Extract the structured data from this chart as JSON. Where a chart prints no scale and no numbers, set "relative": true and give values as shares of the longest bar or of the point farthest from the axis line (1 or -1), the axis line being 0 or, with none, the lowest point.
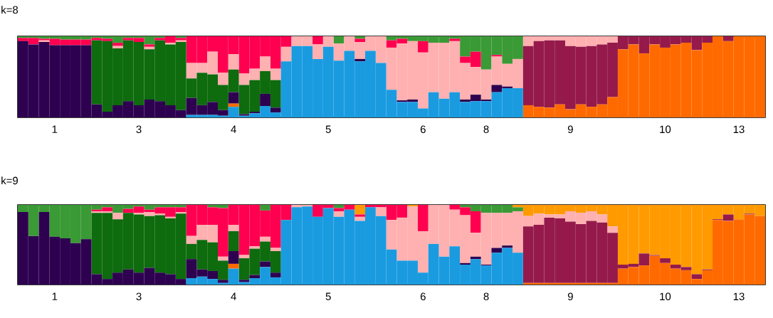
{
  "chart_data": [
    {
      "type": "bar",
      "title": "k=8",
      "stacked": true,
      "relative": true,
      "categories": [
        null,
        null,
        null,
        "1",
        null,
        null,
        null,
        null,
        null,
        null,
        null,
        "3",
        null,
        null,
        null,
        null,
        null,
        null,
        null,
        null,
        "4",
        null,
        null,
        null,
        null,
        null,
        null,
        null,
        null,
        "5",
        null,
        null,
        null,
        null,
        null,
        null,
        null,
        null,
        "6",
        null,
        null,
        null,
        null,
        null,
        "8",
        null,
        null,
        null,
        null,
        null,
        null,
        null,
        "9",
        null,
        null,
        null,
        null,
        null,
        null,
        null,
        null,
        "10",
        null,
        null,
        null,
        null,
        null,
        null,
        "13",
        null,
        null
      ],
      "series": [
        {
          "color": "#1a9be0",
          "values": [
            0,
            0,
            0,
            0,
            0,
            0,
            0,
            0,
            0,
            0,
            0,
            0,
            0,
            0,
            0,
            0,
            0.03,
            0.03,
            0.03,
            0.02,
            0.13,
            0.02,
            0.05,
            0.14,
            0.06,
            0.69,
            0.88,
            0.88,
            0.72,
            0.87,
            0.7,
            0.82,
            0.69,
            0.82,
            0.67,
            0.34,
            0.19,
            0.19,
            0.11,
            0.31,
            0.23,
            0.31,
            0.19,
            0.2,
            0.2,
            0.31,
            0.36,
            0.36,
            0,
            0,
            0,
            0,
            0,
            0,
            0,
            0,
            0,
            0,
            0,
            0,
            0,
            0,
            0,
            0,
            0,
            0,
            0,
            0,
            0,
            0,
            0
          ]
        },
        {
          "color": "#ff6a00",
          "values": [
            0,
            0,
            0,
            0,
            0,
            0,
            0,
            0,
            0,
            0,
            0,
            0,
            0,
            0,
            0,
            0,
            0,
            0,
            0,
            0,
            0.04,
            0,
            0,
            0,
            0,
            0,
            0,
            0,
            0,
            0,
            0,
            0,
            0,
            0,
            0,
            0,
            0,
            0,
            0,
            0,
            0,
            0,
            0,
            0,
            0,
            0,
            0,
            0,
            0.15,
            0.13,
            0.12,
            0.16,
            0.1,
            0.16,
            0.13,
            0.16,
            0.25,
            0.84,
            0.9,
            0.79,
            0.9,
            0.86,
            0.9,
            0.92,
            0.83,
            0.92,
            1,
            0.94,
            1,
            1,
            1
          ]
        },
        {
          "color": "#2d0050",
          "values": [
            0.94,
            0.9,
            0.93,
            0.89,
            0.89,
            0.89,
            0.89,
            0.16,
            0.07,
            0.15,
            0.2,
            0.15,
            0.22,
            0.2,
            0.15,
            0.09,
            0.21,
            0.12,
            0.16,
            0.07,
            0.14,
            0.02,
            0.02,
            0.15,
            0.06,
            0,
            0,
            0,
            0,
            0,
            0,
            0,
            0.03,
            0,
            0,
            0,
            0.02,
            0.03,
            0,
            0,
            0,
            0,
            0.03,
            0.08,
            0.02,
            0.09,
            0.02,
            0,
            0,
            0,
            0,
            0,
            0,
            0,
            0,
            0,
            0,
            0,
            0,
            0,
            0,
            0,
            0,
            0,
            0,
            0,
            0,
            0,
            0,
            0,
            0
          ]
        },
        {
          "color": "#0e6b0e",
          "values": [
            0,
            0,
            0,
            0,
            0,
            0,
            0,
            0.79,
            0.87,
            0.7,
            0.75,
            0.78,
            0.62,
            0.75,
            0.75,
            0.84,
            0.24,
            0.4,
            0.34,
            0.31,
            0.28,
            0.36,
            0.39,
            0.28,
            0.34,
            0,
            0,
            0,
            0,
            0,
            0,
            0,
            0,
            0,
            0,
            0,
            0,
            0,
            0,
            0,
            0,
            0,
            0,
            0,
            0,
            0,
            0,
            0,
            0,
            0,
            0,
            0,
            0,
            0,
            0,
            0,
            0,
            0,
            0,
            0,
            0,
            0,
            0,
            0,
            0,
            0,
            0,
            0,
            0,
            0,
            0
          ]
        },
        {
          "color": "#951a4b",
          "values": [
            0,
            0,
            0,
            0,
            0,
            0,
            0,
            0,
            0,
            0,
            0,
            0,
            0,
            0,
            0,
            0,
            0,
            0,
            0,
            0,
            0,
            0,
            0,
            0,
            0,
            0,
            0,
            0,
            0,
            0,
            0,
            0,
            0,
            0,
            0,
            0,
            0,
            0,
            0,
            0,
            0,
            0,
            0,
            0,
            0,
            0,
            0,
            0,
            0.73,
            0.81,
            0.83,
            0.79,
            0.78,
            0.71,
            0.75,
            0.74,
            0.67,
            0.16,
            0.1,
            0.21,
            0.1,
            0.14,
            0.1,
            0.08,
            0.17,
            0.08,
            0,
            0.06,
            0,
            0,
            0
          ]
        },
        {
          "color": "#ffb0b0",
          "values": [
            0,
            0,
            0.02,
            0,
            0,
            0,
            0,
            0,
            0,
            0.03,
            0,
            0,
            0.03,
            0,
            0.02,
            0.02,
            0.19,
            0.12,
            0.28,
            0.15,
            0.19,
            0.14,
            0.14,
            0.18,
            0.14,
            0.18,
            0.12,
            0.12,
            0.18,
            0.13,
            0.21,
            0.18,
            0.21,
            0.18,
            0.33,
            0.52,
            0.7,
            0.72,
            0.69,
            0.61,
            0.69,
            0.63,
            0.45,
            0.34,
            0.37,
            0.35,
            0.28,
            0.36,
            0.12,
            0.06,
            0.05,
            0.05,
            0.12,
            0.13,
            0.12,
            0.1,
            0.08,
            0,
            0,
            0,
            0,
            0,
            0,
            0,
            0,
            0,
            0,
            0,
            0,
            0,
            0
          ]
        },
        {
          "color": "#ff0050",
          "values": [
            0.04,
            0.08,
            0.02,
            0.08,
            0.07,
            0.07,
            0.07,
            0.03,
            0.03,
            0.04,
            0.03,
            0.05,
            0.03,
            0.03,
            0.08,
            0.03,
            0.33,
            0.33,
            0.19,
            0.45,
            0.22,
            0.46,
            0.4,
            0.25,
            0.4,
            0.13,
            0,
            0,
            0.1,
            0,
            0,
            0,
            0.04,
            0,
            0,
            0.09,
            0.06,
            0,
            0.14,
            0,
            0,
            0.03,
            0.08,
            0.19,
            0,
            0.02,
            0,
            0,
            0,
            0,
            0,
            0,
            0,
            0,
            0,
            0,
            0,
            0,
            0,
            0,
            0,
            0,
            0,
            0,
            0,
            0,
            0,
            0,
            0,
            0,
            0
          ]
        },
        {
          "color": "#3a9a35",
          "values": [
            0.02,
            0.02,
            0.03,
            0.03,
            0.04,
            0.04,
            0.04,
            0.02,
            0.03,
            0.08,
            0.02,
            0.02,
            0.1,
            0.02,
            0,
            0.02,
            0,
            0,
            0,
            0,
            0,
            0,
            0,
            0,
            0,
            0,
            0,
            0,
            0,
            0,
            0.09,
            0,
            0.03,
            0,
            0,
            0.05,
            0.03,
            0.06,
            0.06,
            0.08,
            0.08,
            0.03,
            0.25,
            0.19,
            0.41,
            0.23,
            0.34,
            0.28,
            0,
            0,
            0,
            0,
            0,
            0,
            0,
            0,
            0,
            0,
            0,
            0,
            0,
            0,
            0,
            0,
            0,
            0,
            0,
            0,
            0,
            0,
            0
          ]
        }
      ]
    },
    {
      "type": "bar",
      "title": "k=9",
      "stacked": true,
      "relative": true,
      "categories": [
        null,
        null,
        null,
        "1",
        null,
        null,
        null,
        null,
        null,
        null,
        null,
        "3",
        null,
        null,
        null,
        null,
        null,
        null,
        null,
        null,
        "4",
        null,
        null,
        null,
        null,
        null,
        null,
        null,
        null,
        "5",
        null,
        null,
        null,
        null,
        null,
        null,
        null,
        null,
        "6",
        null,
        null,
        null,
        null,
        null,
        "8",
        null,
        null,
        null,
        null,
        null,
        null,
        null,
        "9",
        null,
        null,
        null,
        null,
        null,
        null,
        null,
        null,
        "10",
        null,
        null,
        null,
        null,
        null,
        null,
        "13",
        null,
        null
      ],
      "series": [
        {
          "color": "#1a9be0",
          "values": [
            0,
            0,
            0,
            0,
            0,
            0,
            0,
            0,
            0,
            0,
            0,
            0,
            0,
            0,
            0,
            0,
            0.08,
            0.1,
            0.07,
            0.02,
            0.2,
            0.03,
            0.08,
            0.22,
            0.09,
            0.81,
            0.97,
            0.98,
            0.85,
            0.96,
            0.85,
            0.94,
            0.8,
            0.97,
            0.86,
            0.44,
            0.3,
            0.3,
            0.15,
            0.51,
            0.35,
            0.48,
            0.25,
            0.32,
            0.24,
            0.4,
            0.46,
            0.4,
            0,
            0,
            0,
            0,
            0,
            0,
            0,
            0,
            0,
            0,
            0,
            0,
            0,
            0,
            0,
            0,
            0,
            0,
            0,
            0,
            0,
            0,
            0
          ]
        },
        {
          "color": "#ff6a00",
          "values": [
            0,
            0,
            0,
            0,
            0,
            0,
            0,
            0,
            0,
            0,
            0,
            0,
            0,
            0,
            0,
            0,
            0,
            0,
            0,
            0,
            0.06,
            0,
            0,
            0,
            0,
            0,
            0,
            0,
            0,
            0,
            0,
            0,
            0,
            0,
            0,
            0,
            0,
            0,
            0,
            0,
            0,
            0,
            0,
            0,
            0,
            0,
            0,
            0,
            0.02,
            0.02,
            0.02,
            0.02,
            0.02,
            0.02,
            0.02,
            0.02,
            0.02,
            0.2,
            0.22,
            0.24,
            0.36,
            0.27,
            0.2,
            0.18,
            0.07,
            0.18,
            0.81,
            0.8,
            0.82,
            0.88,
            0.86
          ]
        },
        {
          "color": "#2d0050",
          "values": [
            0.91,
            0.61,
            0.91,
            0.6,
            0.58,
            0.52,
            0.57,
            0.13,
            0.07,
            0.15,
            0.19,
            0.15,
            0.21,
            0.15,
            0.13,
            0.07,
            0.24,
            0.09,
            0.1,
            0.04,
            0.16,
            0.03,
            0.04,
            0.07,
            0.06,
            0,
            0,
            0,
            0,
            0,
            0,
            0,
            0,
            0,
            0,
            0,
            0,
            0,
            0,
            0,
            0,
            0,
            0.02,
            0.03,
            0.01,
            0.06,
            0.03,
            0,
            0,
            0,
            0,
            0,
            0,
            0,
            0,
            0,
            0,
            0,
            0,
            0,
            0,
            0,
            0,
            0,
            0,
            0,
            0,
            0,
            0,
            0,
            0
          ]
        },
        {
          "color": "#0e6b0e",
          "values": [
            0,
            0,
            0,
            0,
            0,
            0,
            0,
            0.77,
            0.83,
            0.67,
            0.71,
            0.73,
            0.65,
            0.72,
            0.7,
            0.82,
            0.19,
            0.37,
            0.36,
            0.24,
            0.25,
            0.27,
            0.33,
            0.25,
            0.27,
            0,
            0,
            0,
            0,
            0,
            0,
            0,
            0,
            0,
            0,
            0,
            0,
            0,
            0,
            0,
            0,
            0,
            0,
            0,
            0,
            0,
            0,
            0,
            0,
            0,
            0,
            0,
            0,
            0,
            0,
            0,
            0,
            0,
            0,
            0,
            0,
            0,
            0,
            0,
            0,
            0,
            0,
            0,
            0,
            0,
            0
          ]
        },
        {
          "color": "#951a4b",
          "values": [
            0,
            0,
            0,
            0,
            0,
            0,
            0,
            0,
            0,
            0,
            0,
            0,
            0,
            0,
            0,
            0,
            0,
            0,
            0,
            0,
            0,
            0,
            0,
            0,
            0,
            0,
            0,
            0,
            0,
            0,
            0,
            0,
            0,
            0,
            0,
            0,
            0,
            0,
            0,
            0,
            0,
            0,
            0,
            0,
            0,
            0,
            0,
            0,
            0.71,
            0.73,
            0.82,
            0.81,
            0.77,
            0.74,
            0.78,
            0.76,
            0.63,
            0.05,
            0.04,
            0.15,
            0.01,
            0.06,
            0.05,
            0.04,
            0.06,
            0.01,
            0.01,
            0.08,
            0,
            0.01,
            0
          ]
        },
        {
          "color": "#ffb0b0",
          "values": [
            0,
            0,
            0,
            0,
            0,
            0,
            0,
            0.02,
            0.02,
            0.08,
            0,
            0.02,
            0.05,
            0.02,
            0.02,
            0.02,
            0.1,
            0.19,
            0.22,
            0.05,
            0.08,
            0.04,
            0.03,
            0.06,
            0.04,
            0,
            0.03,
            0.02,
            0,
            0,
            0.07,
            0,
            0.05,
            0,
            0.11,
            0.37,
            0.54,
            0.68,
            0.52,
            0.49,
            0.65,
            0.46,
            0.6,
            0.3,
            0.65,
            0.44,
            0.41,
            0.52,
            0.13,
            0.14,
            0.04,
            0.05,
            0.13,
            0.14,
            0.12,
            0.1,
            0.08,
            0,
            0,
            0,
            0,
            0,
            0,
            0,
            0,
            0,
            0,
            0,
            0,
            0,
            0
          ]
        },
        {
          "color": "#ff0050",
          "values": [
            0,
            0,
            0,
            0,
            0,
            0,
            0,
            0.02,
            0.05,
            0,
            0.05,
            0.08,
            0.03,
            0.08,
            0.12,
            0.06,
            0.39,
            0.25,
            0.22,
            0.61,
            0.25,
            0.63,
            0.52,
            0.33,
            0.54,
            0.19,
            0,
            0,
            0.15,
            0.04,
            0.04,
            0.06,
            0.03,
            0.03,
            0.03,
            0.19,
            0.16,
            0,
            0.33,
            0,
            0,
            0.06,
            0.1,
            0.27,
            0,
            0,
            0,
            0,
            0,
            0,
            0,
            0,
            0,
            0,
            0,
            0,
            0,
            0,
            0,
            0,
            0,
            0,
            0,
            0,
            0,
            0,
            0,
            0,
            0,
            0,
            0
          ]
        },
        {
          "color": "#3a9a35",
          "values": [
            0.09,
            0.39,
            0.09,
            0.4,
            0.42,
            0.48,
            0.43,
            0.06,
            0.03,
            0.1,
            0.05,
            0.02,
            0.06,
            0.03,
            0.03,
            0.03,
            0,
            0,
            0.03,
            0.04,
            0,
            0,
            0,
            0.07,
            0,
            0,
            0,
            0,
            0,
            0,
            0.04,
            0,
            0,
            0,
            0,
            0,
            0,
            0,
            0,
            0,
            0,
            0,
            0.03,
            0.08,
            0.1,
            0.1,
            0.1,
            0.05,
            0,
            0,
            0,
            0,
            0,
            0,
            0,
            0,
            0,
            0,
            0,
            0,
            0,
            0,
            0,
            0,
            0,
            0,
            0,
            0,
            0,
            0,
            0
          ]
        },
        {
          "color": "#ff9a00",
          "values": [
            0,
            0,
            0,
            0,
            0,
            0,
            0,
            0,
            0,
            0,
            0,
            0,
            0,
            0,
            0,
            0,
            0,
            0,
            0,
            0,
            0,
            0,
            0,
            0,
            0,
            0,
            0,
            0,
            0,
            0,
            0,
            0,
            0.12,
            0,
            0,
            0,
            0,
            0.02,
            0,
            0,
            0,
            0,
            0,
            0,
            0,
            0,
            0,
            0.03,
            0.14,
            0.11,
            0.12,
            0.12,
            0.08,
            0.1,
            0.08,
            0.12,
            0.27,
            0.75,
            0.74,
            0.61,
            0.63,
            0.67,
            0.75,
            0.78,
            0.87,
            0.81,
            0.18,
            0.12,
            0.18,
            0.11,
            0.14
          ]
        }
      ]
    }
  ]
}
